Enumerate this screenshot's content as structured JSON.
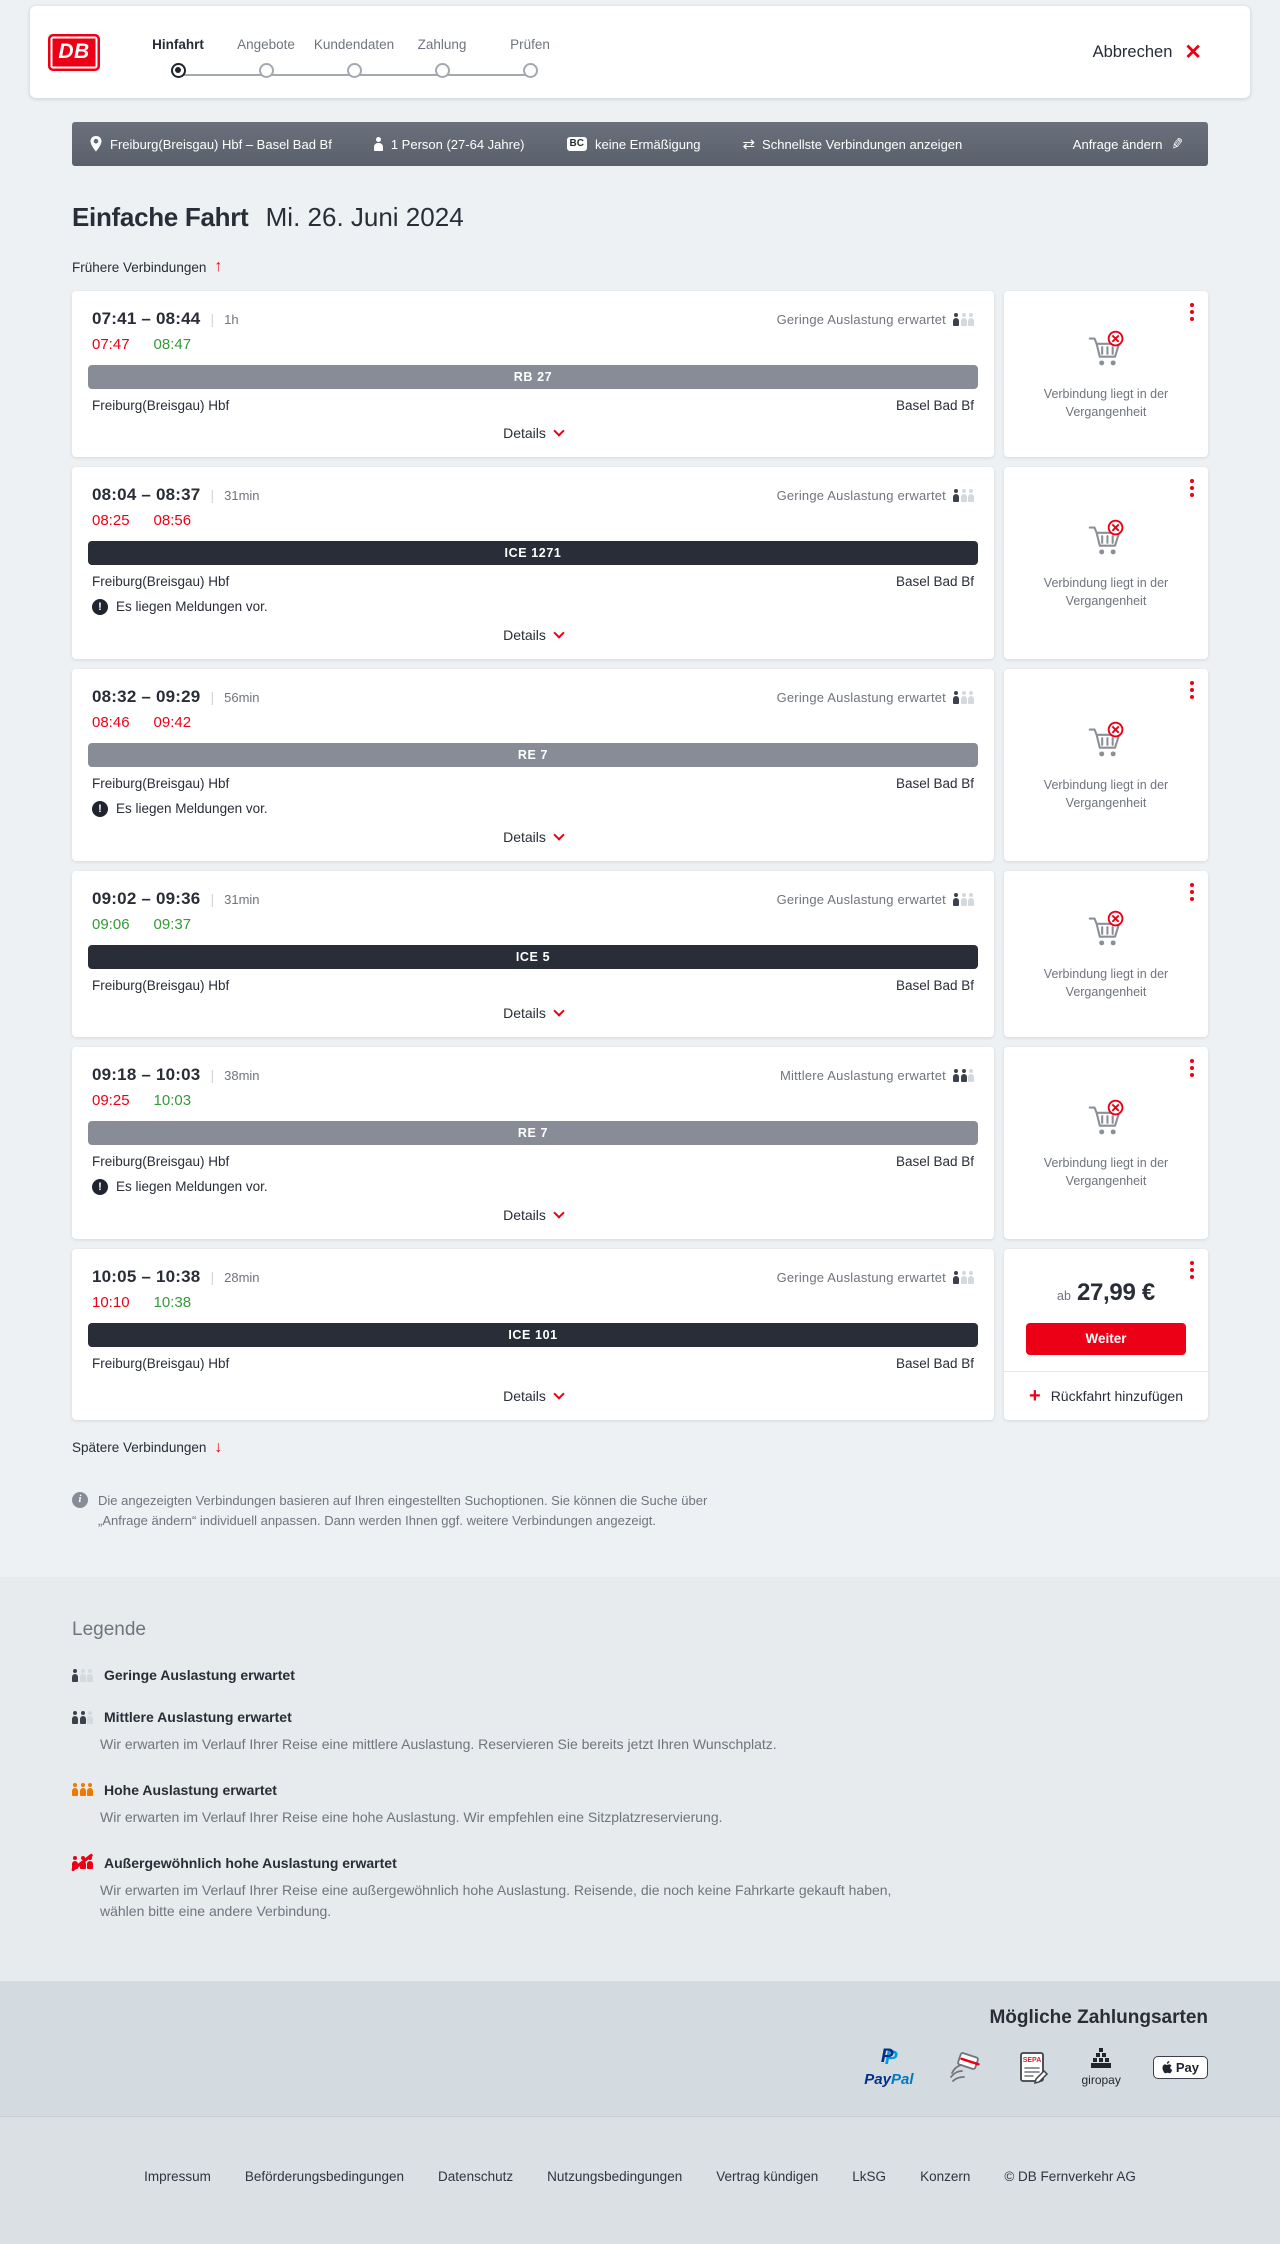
{
  "colors": {
    "brand_red": "#ec0016",
    "ice_bar": "#282d37",
    "regional_bar": "#878c96",
    "late_red": "#ec0016",
    "ontime_green": "#349a38",
    "high_occupancy_orange": "#f07800"
  },
  "ui": {
    "time_separator": "|"
  },
  "header": {
    "logo_text": "DB",
    "steps": [
      {
        "label": "Hinfahrt",
        "active": true
      },
      {
        "label": "Angebote",
        "active": false
      },
      {
        "label": "Kundendaten",
        "active": false
      },
      {
        "label": "Zahlung",
        "active": false
      },
      {
        "label": "Prüfen",
        "active": false
      }
    ],
    "cancel_label": "Abbrechen",
    "cancel_icon": "✕"
  },
  "summary": {
    "route": "Freiburg(Breisgau) Hbf – Basel Bad Bf",
    "passengers": "1 Person (27-64 Jahre)",
    "discount_badge": "BC",
    "discount": "keine Ermäßigung",
    "sort_option": "Schnellste Verbindungen anzeigen",
    "change_label": "Anfrage ändern",
    "change_icon": "✎",
    "sort_icon": "⇄"
  },
  "page": {
    "title": "Einfache Fahrt",
    "date": "Mi. 26. Juni 2024",
    "earlier_label": "Frühere Verbindungen",
    "earlier_icon": "↑",
    "later_label": "Spätere Verbindungen",
    "later_icon": "↓",
    "note": "Die angezeigten Verbindungen basieren auf Ihren eingestellten Suchoptionen. Sie können die Suche über „Anfrage ändern“ individuell anpassen. Dann werden Ihnen ggf. weitere Verbindungen angezeigt."
  },
  "connections": [
    {
      "time_range": "07:41 – 08:44",
      "duration": "1h",
      "occupancy_label": "Geringe Auslastung erwartet",
      "occupancy_level": 1,
      "dep_actual": "07:47",
      "dep_status": "late",
      "arr_actual": "08:47",
      "arr_status": "ontime",
      "train": "RB 27",
      "train_type": "regional",
      "from": "Freiburg(Breisgau) Hbf",
      "to": "Basel Bad Bf",
      "messages": null,
      "details_label": "Details",
      "side": {
        "type": "past",
        "text": "Verbindung liegt in der Vergangenheit"
      }
    },
    {
      "time_range": "08:04 – 08:37",
      "duration": "31min",
      "occupancy_label": "Geringe Auslastung erwartet",
      "occupancy_level": 1,
      "dep_actual": "08:25",
      "dep_status": "late",
      "arr_actual": "08:56",
      "arr_status": "late",
      "train": "ICE 1271",
      "train_type": "ice",
      "from": "Freiburg(Breisgau) Hbf",
      "to": "Basel Bad Bf",
      "messages": "Es liegen Meldungen vor.",
      "details_label": "Details",
      "side": {
        "type": "past",
        "text": "Verbindung liegt in der Vergangenheit"
      }
    },
    {
      "time_range": "08:32 – 09:29",
      "duration": "56min",
      "occupancy_label": "Geringe Auslastung erwartet",
      "occupancy_level": 1,
      "dep_actual": "08:46",
      "dep_status": "late",
      "arr_actual": "09:42",
      "arr_status": "late",
      "train": "RE 7",
      "train_type": "regional",
      "from": "Freiburg(Breisgau) Hbf",
      "to": "Basel Bad Bf",
      "messages": "Es liegen Meldungen vor.",
      "details_label": "Details",
      "side": {
        "type": "past",
        "text": "Verbindung liegt in der Vergangenheit"
      }
    },
    {
      "time_range": "09:02 – 09:36",
      "duration": "31min",
      "occupancy_label": "Geringe Auslastung erwartet",
      "occupancy_level": 1,
      "dep_actual": "09:06",
      "dep_status": "ontime",
      "arr_actual": "09:37",
      "arr_status": "ontime",
      "train": "ICE 5",
      "train_type": "ice",
      "from": "Freiburg(Breisgau) Hbf",
      "to": "Basel Bad Bf",
      "messages": null,
      "details_label": "Details",
      "side": {
        "type": "past",
        "text": "Verbindung liegt in der Vergangenheit"
      }
    },
    {
      "time_range": "09:18 – 10:03",
      "duration": "38min",
      "occupancy_label": "Mittlere Auslastung erwartet",
      "occupancy_level": 2,
      "dep_actual": "09:25",
      "dep_status": "late",
      "arr_actual": "10:03",
      "arr_status": "ontime",
      "train": "RE 7",
      "train_type": "regional",
      "from": "Freiburg(Breisgau) Hbf",
      "to": "Basel Bad Bf",
      "messages": "Es liegen Meldungen vor.",
      "details_label": "Details",
      "side": {
        "type": "past",
        "text": "Verbindung liegt in der Vergangenheit"
      }
    },
    {
      "time_range": "10:05 – 10:38",
      "duration": "28min",
      "occupancy_label": "Geringe Auslastung erwartet",
      "occupancy_level": 1,
      "dep_actual": "10:10",
      "dep_status": "late",
      "arr_actual": "10:38",
      "arr_status": "ontime",
      "train": "ICE 101",
      "train_type": "ice",
      "from": "Freiburg(Breisgau) Hbf",
      "to": "Basel Bad Bf",
      "messages": null,
      "details_label": "Details",
      "side": {
        "type": "price",
        "price_prefix": "ab",
        "price": "27,99 €",
        "cta_label": "Weiter",
        "add_return_label": "Rückfahrt hinzufügen",
        "add_return_icon": "+"
      }
    }
  ],
  "legend": {
    "title": "Legende",
    "items": [
      {
        "label": "Geringe Auslastung erwartet",
        "level": 1,
        "description": null
      },
      {
        "label": "Mittlere Auslastung erwartet",
        "level": 2,
        "description": "Wir erwarten im Verlauf Ihrer Reise eine mittlere Auslastung. Reservieren Sie bereits jetzt Ihren Wunschplatz."
      },
      {
        "label": "Hohe Auslastung erwartet",
        "level": 3,
        "description": "Wir erwarten im Verlauf Ihrer Reise eine hohe Auslastung. Wir empfehlen eine Sitzplatzreservierung."
      },
      {
        "label": "Außergewöhnlich hohe Auslastung erwartet",
        "level": 4,
        "description": "Wir erwarten im Verlauf Ihrer Reise eine außergewöhnlich hohe Auslastung. Reisende, die noch keine Fahrkarte gekauft haben, wählen bitte eine andere Verbindung."
      }
    ]
  },
  "payments": {
    "title": "Mögliche Zahlungsarten",
    "paypal_label_a": "Pay",
    "paypal_label_b": "Pal",
    "sepa_label": "SEPA",
    "giropay_label": "giropay",
    "applepay_label": "Pay"
  },
  "footer": {
    "links": [
      "Impressum",
      "Beförderungsbedingungen",
      "Datenschutz",
      "Nutzungsbedingungen",
      "Vertrag kündigen",
      "LkSG",
      "Konzern"
    ],
    "copyright": "© DB Fernverkehr AG"
  }
}
